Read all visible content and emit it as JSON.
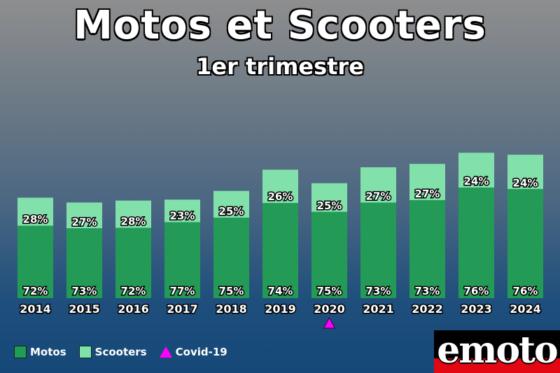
{
  "header": {
    "title": "Motos et Scooters",
    "subtitle": "1er trimestre"
  },
  "chart_data": {
    "type": "bar",
    "stacked": true,
    "title": "Motos et Scooters",
    "subtitle": "1er trimestre",
    "categories": [
      "2014",
      "2015",
      "2016",
      "2017",
      "2018",
      "2019",
      "2020",
      "2021",
      "2022",
      "2023",
      "2024"
    ],
    "totals": [
      208,
      198,
      202,
      204,
      222,
      266,
      238,
      271,
      278,
      301,
      297
    ],
    "series": [
      {
        "name": "Motos",
        "color": "#239b56",
        "labels": [
          "72%",
          "73%",
          "72%",
          "77%",
          "75%",
          "74%",
          "75%",
          "73%",
          "73%",
          "76%",
          "76%"
        ]
      },
      {
        "name": "Scooters",
        "color": "#82e0aa",
        "labels": [
          "28%",
          "27%",
          "28%",
          "23%",
          "25%",
          "26%",
          "25%",
          "27%",
          "27%",
          "24%",
          "24%"
        ]
      }
    ],
    "annotations": [
      {
        "category": "2020",
        "marker": "triangle",
        "color": "#ff00ff",
        "label": "Covid-19"
      }
    ],
    "y_axis_shown": false,
    "grid": false,
    "legend_position": "bottom-left"
  },
  "legend": {
    "items": [
      {
        "label": "Motos",
        "color": "#239b56",
        "shape": "square"
      },
      {
        "label": "Scooters",
        "color": "#82e0aa",
        "shape": "square"
      },
      {
        "label": "Covid-19",
        "color": "#ff00ff",
        "shape": "triangle"
      }
    ]
  },
  "logo": {
    "text": "emoto",
    "brand_red": "#e30613"
  }
}
